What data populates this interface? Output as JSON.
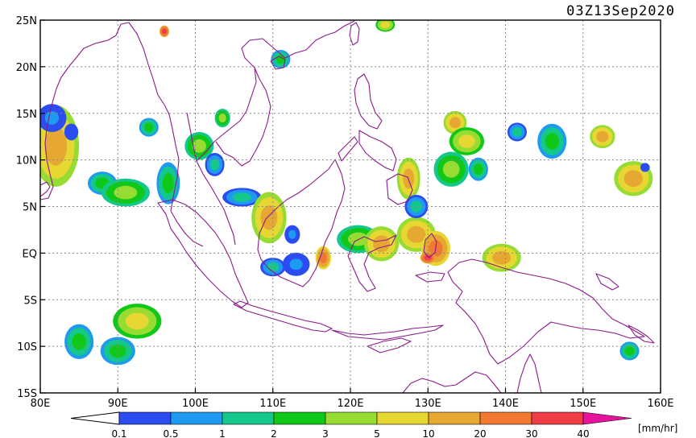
{
  "map": {
    "timestamp": "03Z13Sep2020",
    "extent": {
      "lon_min": 80,
      "lon_max": 160,
      "lat_min": -15,
      "lat_max": 25
    },
    "lon_ticks": [
      {
        "value": 80,
        "label": "80E"
      },
      {
        "value": 90,
        "label": "90E"
      },
      {
        "value": 100,
        "label": "100E"
      },
      {
        "value": 110,
        "label": "110E"
      },
      {
        "value": 120,
        "label": "120E"
      },
      {
        "value": 130,
        "label": "130E"
      },
      {
        "value": 140,
        "label": "140E"
      },
      {
        "value": 150,
        "label": "150E"
      },
      {
        "value": 160,
        "label": "160E"
      }
    ],
    "lat_ticks": [
      {
        "value": 25,
        "label": "25N"
      },
      {
        "value": 20,
        "label": "20N"
      },
      {
        "value": 15,
        "label": "15N"
      },
      {
        "value": 10,
        "label": "10N"
      },
      {
        "value": 5,
        "label": "5N"
      },
      {
        "value": 0,
        "label": "EQ"
      },
      {
        "value": -5,
        "label": "5S"
      },
      {
        "value": -10,
        "label": "10S"
      },
      {
        "value": -15,
        "label": "15S"
      }
    ],
    "grid": true,
    "coast_color": "#8a1a8a",
    "grid_color": "#888888"
  },
  "colorbar": {
    "unit": "[mm/hr]",
    "labels": [
      "0.1",
      "0.5",
      "1",
      "2",
      "3",
      "5",
      "10",
      "20",
      "30",
      "40"
    ],
    "colors": [
      "#2a4cf0",
      "#1e9bf0",
      "#14c88c",
      "#0fc818",
      "#96dc32",
      "#e6d732",
      "#e6a832",
      "#f07832",
      "#f03c46",
      "#e6149b"
    ]
  },
  "chart_data": {
    "type": "heatmap",
    "title": "03Z13Sep2020",
    "xlabel": "",
    "ylabel": "",
    "xlim": [
      80,
      160
    ],
    "ylim": [
      -15,
      25
    ],
    "value_levels_mm_hr": [
      0.1,
      0.5,
      1,
      2,
      3,
      5,
      10,
      20,
      30,
      40
    ],
    "rain_cells": [
      {
        "lon": 82,
        "lat": 11.5,
        "rx": 2.4,
        "ry": 3.5,
        "level": 6
      },
      {
        "lon": 81.5,
        "lat": 14.5,
        "rx": 1.5,
        "ry": 1.2,
        "level": 1
      },
      {
        "lon": 84,
        "lat": 13,
        "rx": 1.5,
        "ry": 1.5,
        "level": 0
      },
      {
        "lon": 88,
        "lat": 7.5,
        "rx": 1.5,
        "ry": 1.0,
        "level": 3
      },
      {
        "lon": 91,
        "lat": 6.5,
        "rx": 2.5,
        "ry": 1.2,
        "level": 4
      },
      {
        "lon": 96.5,
        "lat": 7.5,
        "rx": 1.2,
        "ry": 1.8,
        "level": 3
      },
      {
        "lon": 100.5,
        "lat": 11.5,
        "rx": 1.5,
        "ry": 1.2,
        "level": 4
      },
      {
        "lon": 102.5,
        "lat": 9.5,
        "rx": 1.0,
        "ry": 1.0,
        "level": 2
      },
      {
        "lon": 94,
        "lat": 13.5,
        "rx": 1.0,
        "ry": 0.8,
        "level": 3
      },
      {
        "lon": 103.5,
        "lat": 14.5,
        "rx": 0.8,
        "ry": 0.8,
        "level": 4
      },
      {
        "lon": 106,
        "lat": 6,
        "rx": 2.0,
        "ry": 0.8,
        "level": 2
      },
      {
        "lon": 109.5,
        "lat": 3.8,
        "rx": 1.8,
        "ry": 2.2,
        "level": 6
      },
      {
        "lon": 112.5,
        "lat": 2,
        "rx": 0.8,
        "ry": 0.8,
        "level": 1
      },
      {
        "lon": 110,
        "lat": -1.5,
        "rx": 1.3,
        "ry": 0.8,
        "level": 2
      },
      {
        "lon": 113,
        "lat": -1.2,
        "rx": 1.4,
        "ry": 1.0,
        "level": 1
      },
      {
        "lon": 111,
        "lat": 20.8,
        "rx": 1.0,
        "ry": 0.8,
        "level": 3
      },
      {
        "lon": 92.5,
        "lat": -7.3,
        "rx": 2.5,
        "ry": 1.5,
        "level": 5
      },
      {
        "lon": 90,
        "lat": -10.5,
        "rx": 1.8,
        "ry": 1.2,
        "level": 3
      },
      {
        "lon": 85,
        "lat": -9.5,
        "rx": 1.5,
        "ry": 1.5,
        "level": 3
      },
      {
        "lon": 121,
        "lat": 1.5,
        "rx": 2.2,
        "ry": 1.2,
        "level": 4
      },
      {
        "lon": 124,
        "lat": 1,
        "rx": 1.8,
        "ry": 1.5,
        "level": 6
      },
      {
        "lon": 128.5,
        "lat": 2,
        "rx": 2.0,
        "ry": 1.5,
        "level": 6
      },
      {
        "lon": 131,
        "lat": 0.5,
        "rx": 1.5,
        "ry": 1.5,
        "level": 7
      },
      {
        "lon": 130,
        "lat": -0.5,
        "rx": 0.8,
        "ry": 0.5,
        "level": 8
      },
      {
        "lon": 116.5,
        "lat": -0.5,
        "rx": 0.8,
        "ry": 1.0,
        "level": 7
      },
      {
        "lon": 127.5,
        "lat": 8,
        "rx": 1.2,
        "ry": 1.8,
        "level": 6
      },
      {
        "lon": 128.5,
        "lat": 5,
        "rx": 1.2,
        "ry": 1.0,
        "level": 2
      },
      {
        "lon": 133,
        "lat": 9,
        "rx": 1.8,
        "ry": 1.5,
        "level": 4
      },
      {
        "lon": 133.5,
        "lat": 14,
        "rx": 1.2,
        "ry": 1.0,
        "level": 6
      },
      {
        "lon": 135,
        "lat": 12,
        "rx": 1.8,
        "ry": 1.2,
        "level": 5
      },
      {
        "lon": 136.5,
        "lat": 9,
        "rx": 1.0,
        "ry": 1.0,
        "level": 3
      },
      {
        "lon": 139.5,
        "lat": -0.5,
        "rx": 2.0,
        "ry": 1.2,
        "level": 6
      },
      {
        "lon": 146,
        "lat": 12,
        "rx": 1.5,
        "ry": 1.5,
        "level": 3
      },
      {
        "lon": 152.5,
        "lat": 12.5,
        "rx": 1.3,
        "ry": 1.0,
        "level": 6
      },
      {
        "lon": 156.5,
        "lat": 8,
        "rx": 2.0,
        "ry": 1.5,
        "level": 6
      },
      {
        "lon": 158,
        "lat": 9.2,
        "rx": 1.0,
        "ry": 0.8,
        "level": 0
      },
      {
        "lon": 156,
        "lat": -10.5,
        "rx": 1.0,
        "ry": 0.8,
        "level": 3
      },
      {
        "lon": 141.5,
        "lat": 13,
        "rx": 1.0,
        "ry": 0.8,
        "level": 2
      },
      {
        "lon": 124.5,
        "lat": 24.5,
        "rx": 1.0,
        "ry": 0.6,
        "level": 5
      },
      {
        "lon": 96,
        "lat": 23.8,
        "rx": 0.5,
        "ry": 0.5,
        "level": 8
      }
    ]
  }
}
